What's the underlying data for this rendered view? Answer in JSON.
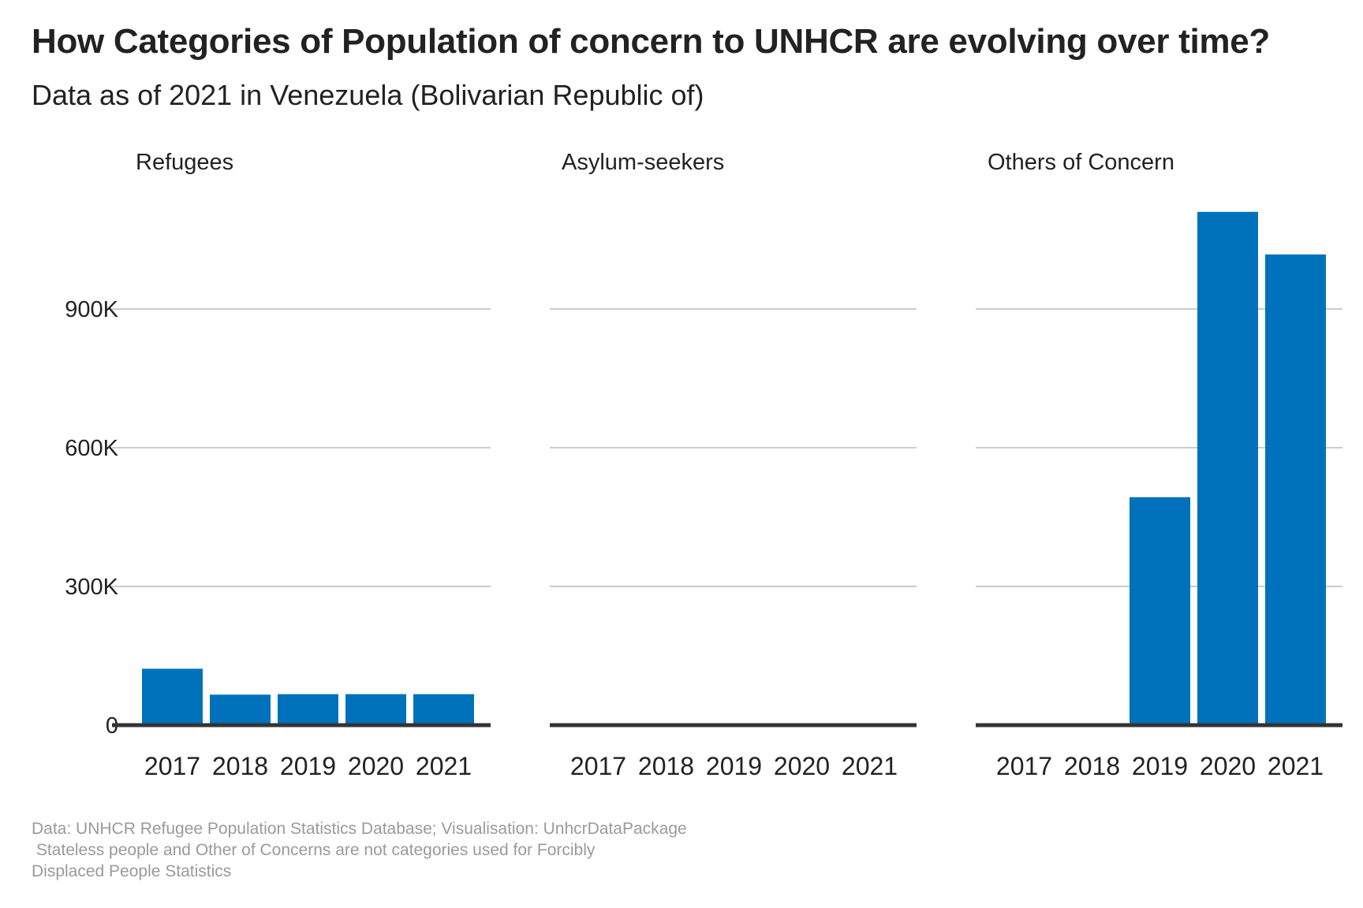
{
  "title": "How Categories of Population of concern to UNHCR are evolving over time?",
  "subtitle": "Data as of 2021  in Venezuela (Bolivarian Republic of)",
  "caption": [
    "Data: UNHCR Refugee Population Statistics Database; Visualisation: UnhcrDataPackage",
    " Stateless people and Other of Concerns are not categories used for Forcibly",
    "Displaced People Statistics"
  ],
  "colors": {
    "bar": "#0072bc",
    "grid": "#cccccc",
    "baseline": "#333333",
    "text": "#222222",
    "caption": "#9a9a9a"
  },
  "chart_data": {
    "type": "bar",
    "layout": "small-multiples",
    "categories": [
      "2017",
      "2018",
      "2019",
      "2020",
      "2021"
    ],
    "ylim": [
      0,
      1150000
    ],
    "yticks": [
      0,
      300000,
      600000,
      900000
    ],
    "ytick_labels": [
      "0",
      "300K",
      "600K",
      "900K"
    ],
    "grid": "horizontal",
    "facets": [
      {
        "name": "Refugees",
        "values": [
          122000,
          66000,
          67000,
          67000,
          67000
        ]
      },
      {
        "name": "Asylum-seekers",
        "values": [
          300,
          300,
          300,
          300,
          300
        ]
      },
      {
        "name": "Others of Concern",
        "values": [
          0,
          0,
          493000,
          1110000,
          1018000
        ]
      }
    ]
  }
}
